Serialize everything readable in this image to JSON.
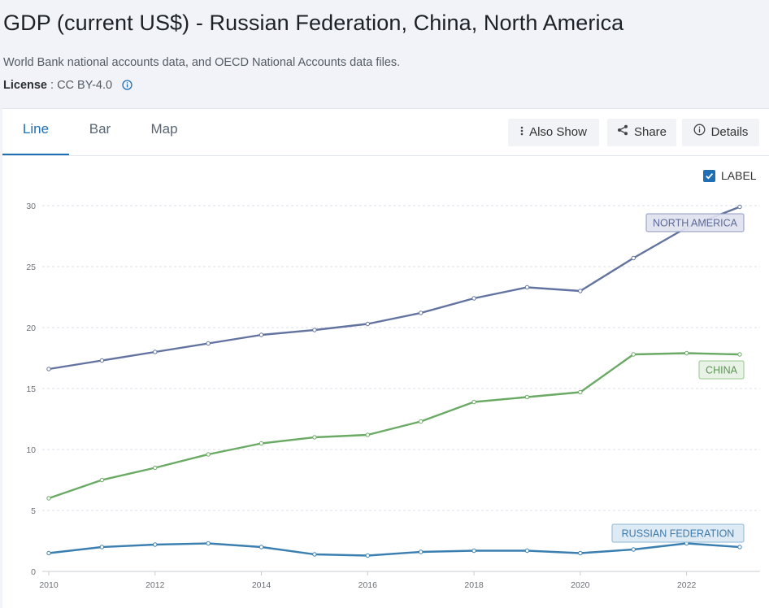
{
  "header": {
    "title": "GDP (current US$) - Russian Federation, China, North America",
    "source": "World Bank national accounts data, and OECD National Accounts data files.",
    "license_label": "License",
    "license_value": " : CC BY-4.0"
  },
  "tabs": [
    {
      "label": "Line",
      "active": true
    },
    {
      "label": "Bar",
      "active": false
    },
    {
      "label": "Map",
      "active": false
    }
  ],
  "toolbar": {
    "also_show": "Also Show",
    "share": "Share",
    "details": "Details"
  },
  "label_toggle": {
    "label": "LABEL",
    "checked": true
  },
  "colors": {
    "north_america": "#6373a0",
    "china": "#6aaa64",
    "russia": "#3a7fb0",
    "accent": "#1f6fb4"
  },
  "chart_data": {
    "type": "line",
    "title": "",
    "xlabel": "",
    "ylabel": "",
    "x": [
      2010,
      2011,
      2012,
      2013,
      2014,
      2015,
      2016,
      2017,
      2018,
      2019,
      2020,
      2021,
      2022,
      2023
    ],
    "xticks": [
      "2010",
      "2012",
      "2014",
      "2016",
      "2018",
      "2020",
      "2022"
    ],
    "yticks": [
      "0",
      "5",
      "10",
      "15",
      "20",
      "25",
      "30"
    ],
    "ylim": [
      0,
      30
    ],
    "xlim": [
      2010,
      2023
    ],
    "grid": true,
    "series": [
      {
        "name": "NORTH AMERICA",
        "color": "#6373a0",
        "values": [
          16.6,
          17.3,
          18.0,
          18.7,
          19.4,
          19.8,
          20.3,
          21.2,
          22.4,
          23.3,
          23.0,
          25.7,
          28.2,
          29.9
        ]
      },
      {
        "name": "CHINA",
        "color": "#6aaa64",
        "values": [
          6.0,
          7.5,
          8.5,
          9.6,
          10.5,
          11.0,
          11.2,
          12.3,
          13.9,
          14.3,
          14.7,
          17.8,
          17.9,
          17.8
        ]
      },
      {
        "name": "RUSSIAN FEDERATION",
        "color": "#3a7fb0",
        "values": [
          1.5,
          2.0,
          2.2,
          2.3,
          2.0,
          1.4,
          1.3,
          1.6,
          1.7,
          1.7,
          1.5,
          1.8,
          2.3,
          2.0
        ]
      }
    ]
  }
}
